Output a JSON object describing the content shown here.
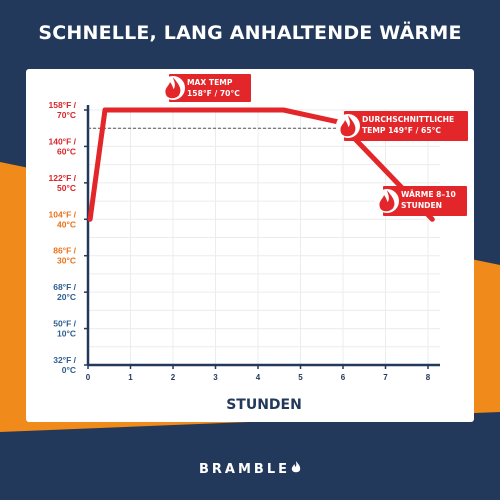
{
  "headline": "SCHNELLE, LANG ANHALTENDE WÄRME",
  "brand": "BRAMBLE",
  "colors": {
    "background_navy": "#22395b",
    "background_orange": "#f08a1a",
    "line_red": "#e3262a",
    "callout_red": "#e3262a",
    "tick_red": "#d8262a",
    "tick_orange": "#e8731a",
    "tick_blue": "#2c5f8f"
  },
  "chart_data": {
    "type": "line",
    "xlabel": "STUNDEN",
    "ylabel": "",
    "xlim": [
      0,
      8.5
    ],
    "ylim": [
      0,
      162
    ],
    "x_ticks": [
      0,
      1,
      2,
      3,
      4,
      5,
      6,
      7,
      8
    ],
    "y_ticks": [
      {
        "value": 32,
        "line1": "32°F /",
        "line2": "0°C",
        "color": "#2c5f8f"
      },
      {
        "value": 50,
        "line1": "50°F /",
        "line2": "10°C",
        "color": "#2c5f8f"
      },
      {
        "value": 68,
        "line1": "68°F /",
        "line2": "20°C",
        "color": "#2c5f8f"
      },
      {
        "value": 86,
        "line1": "86°F /",
        "line2": "30°C",
        "color": "#e8731a"
      },
      {
        "value": 104,
        "line1": "104°F /",
        "line2": "40°C",
        "color": "#e8731a"
      },
      {
        "value": 122,
        "line1": "122°F /",
        "line2": "50°C",
        "color": "#d8262a"
      },
      {
        "value": 140,
        "line1": "140°F /",
        "line2": "60°C",
        "color": "#d8262a"
      },
      {
        "value": 158,
        "line1": "158°F /",
        "line2": "70°C",
        "color": "#d8262a"
      }
    ],
    "grid": true,
    "series": [
      {
        "values_x": [
          0.05,
          0.4,
          4.6,
          5.9,
          8.1
        ],
        "values_y": [
          104,
          158,
          158,
          152,
          104
        ]
      }
    ],
    "reference_line": {
      "y": 149
    },
    "annotations": [
      {
        "name": "max-temp",
        "x": 0.4,
        "y": 158,
        "line1": "MAX TEMP",
        "line2": "158°F / 70°C"
      },
      {
        "name": "average-temp",
        "x": 5.9,
        "y": 149,
        "line1": "DURCHSCHNITTLICHE",
        "line2": "TEMP 149°F / 65°C"
      },
      {
        "name": "warmth-duration",
        "x": 7.5,
        "y": 125,
        "line1": "WÄRME 8–10",
        "line2": "STUNDEN"
      }
    ]
  }
}
